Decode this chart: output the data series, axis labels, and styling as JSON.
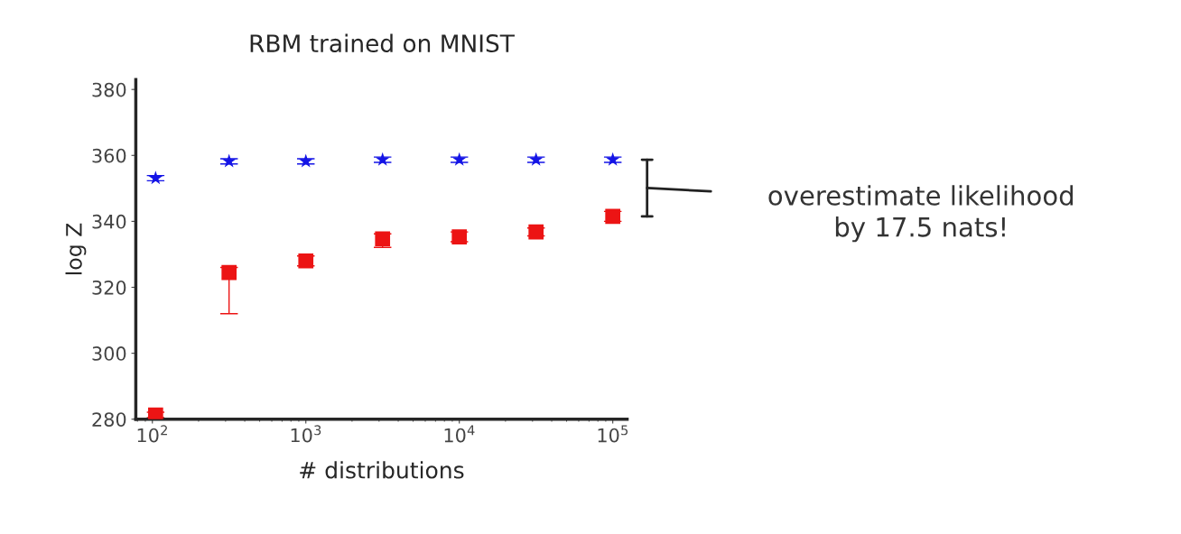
{
  "chart_data": {
    "type": "scatter",
    "title": "RBM trained on MNIST",
    "xlabel": "# distributions",
    "ylabel": "log Z",
    "x": [
      105,
      316,
      1000,
      3162,
      10000,
      31623,
      100000
    ],
    "series": [
      {
        "color": "#1414e6",
        "marker": "star",
        "values": [
          353.1,
          358.2,
          358.2,
          358.7,
          358.7,
          358.7,
          358.7
        ],
        "errors": [
          0.8,
          0.8,
          0.8,
          0.8,
          0.8,
          0.8,
          0.8
        ]
      },
      {
        "color": "#ec1414",
        "marker": "square",
        "values": [
          281.3,
          324.5,
          328,
          334.7,
          335.3,
          336.8,
          341.5
        ],
        "errors": [
          0.8,
          [
            312,
            326
          ],
          1.5,
          [
            332.1,
            336.2
          ],
          1.5,
          1.2,
          1.5
        ]
      }
    ],
    "log": "x",
    "xlim": [
      78,
      124000
    ],
    "xticks": [
      {
        "value": 100,
        "label": "10$^{2}$"
      },
      {
        "value": 1000,
        "label": "10$^{3}$"
      },
      {
        "value": 10000,
        "label": "10$^{4}$"
      },
      {
        "value": 100000,
        "label": "10$^{5}$"
      }
    ],
    "ylim": [
      280,
      383
    ],
    "yticks": [
      280,
      300,
      320,
      340,
      360,
      380
    ],
    "grid": false,
    "annotations": [
      "overestimate likelihood\nby 17.5 nats!"
    ]
  }
}
